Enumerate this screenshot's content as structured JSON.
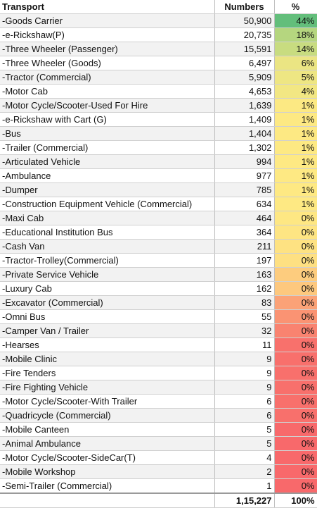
{
  "header": {
    "transport": "Transport",
    "numbers": "Numbers",
    "percent": "%"
  },
  "rows": [
    {
      "label": "-Goods Carrier",
      "value": "50,900",
      "pct": "44%",
      "color": "#63be7b"
    },
    {
      "label": "-e-Rickshaw(P)",
      "value": "20,735",
      "pct": "18%",
      "color": "#b5d67f"
    },
    {
      "label": "-Three Wheeler (Passenger)",
      "value": "15,591",
      "pct": "14%",
      "color": "#c8dc80"
    },
    {
      "label": "-Three Wheeler (Goods)",
      "value": "6,497",
      "pct": "6%",
      "color": "#ebe583"
    },
    {
      "label": "-Tractor (Commercial)",
      "value": "5,909",
      "pct": "5%",
      "color": "#eee683"
    },
    {
      "label": "-Motor Cab",
      "value": "4,653",
      "pct": "4%",
      "color": "#f2e783"
    },
    {
      "label": "-Motor Cycle/Scooter-Used For Hire",
      "value": "1,639",
      "pct": "1%",
      "color": "#fce983"
    },
    {
      "label": "-e-Rickshaw with Cart (G)",
      "value": "1,409",
      "pct": "1%",
      "color": "#fde983"
    },
    {
      "label": "-Bus",
      "value": "1,404",
      "pct": "1%",
      "color": "#fde983"
    },
    {
      "label": "-Trailer (Commercial)",
      "value": "1,302",
      "pct": "1%",
      "color": "#fde983"
    },
    {
      "label": "-Articulated Vehicle",
      "value": "994",
      "pct": "1%",
      "color": "#fee983"
    },
    {
      "label": "-Ambulance",
      "value": "977",
      "pct": "1%",
      "color": "#fee983"
    },
    {
      "label": "-Dumper",
      "value": "785",
      "pct": "1%",
      "color": "#fee983"
    },
    {
      "label": "-Construction Equipment Vehicle (Commercial)",
      "value": "634",
      "pct": "1%",
      "color": "#fee983"
    },
    {
      "label": "-Maxi Cab",
      "value": "464",
      "pct": "0%",
      "color": "#fee783"
    },
    {
      "label": "-Educational Institution Bus",
      "value": "364",
      "pct": "0%",
      "color": "#fee583"
    },
    {
      "label": "-Cash Van",
      "value": "211",
      "pct": "0%",
      "color": "#fee282"
    },
    {
      "label": "-Tractor-Trolley(Commercial)",
      "value": "197",
      "pct": "0%",
      "color": "#fee082"
    },
    {
      "label": "-Private Service Vehicle",
      "value": "163",
      "pct": "0%",
      "color": "#fdcc7e"
    },
    {
      "label": "-Luxury Cab",
      "value": "162",
      "pct": "0%",
      "color": "#fdc87e"
    },
    {
      "label": "-Excavator (Commercial)",
      "value": "83",
      "pct": "0%",
      "color": "#fba277"
    },
    {
      "label": "-Omni Bus",
      "value": "55",
      "pct": "0%",
      "color": "#fa9373"
    },
    {
      "label": "-Camper Van / Trailer",
      "value": "32",
      "pct": "0%",
      "color": "#f98370"
    },
    {
      "label": "-Hearses",
      "value": "11",
      "pct": "0%",
      "color": "#f8716c"
    },
    {
      "label": "-Mobile Clinic",
      "value": "9",
      "pct": "0%",
      "color": "#f8706c"
    },
    {
      "label": "-Fire Tenders",
      "value": "9",
      "pct": "0%",
      "color": "#f8706c"
    },
    {
      "label": "-Fire Fighting Vehicle",
      "value": "9",
      "pct": "0%",
      "color": "#f8706c"
    },
    {
      "label": "-Motor Cycle/Scooter-With Trailer",
      "value": "6",
      "pct": "0%",
      "color": "#f8706c"
    },
    {
      "label": "-Quadricycle (Commercial)",
      "value": "6",
      "pct": "0%",
      "color": "#f8706c"
    },
    {
      "label": "-Mobile Canteen",
      "value": "5",
      "pct": "0%",
      "color": "#f8696b"
    },
    {
      "label": "-Animal Ambulance",
      "value": "5",
      "pct": "0%",
      "color": "#f8696b"
    },
    {
      "label": "-Motor Cycle/Scooter-SideCar(T)",
      "value": "4",
      "pct": "0%",
      "color": "#f8696b"
    },
    {
      "label": "-Mobile Workshop",
      "value": "2",
      "pct": "0%",
      "color": "#f8696b"
    },
    {
      "label": "-Semi-Trailer (Commercial)",
      "value": "1",
      "pct": "0%",
      "color": "#f8696b"
    }
  ],
  "total": {
    "label": "",
    "value": "1,15,227",
    "pct": "100%"
  }
}
